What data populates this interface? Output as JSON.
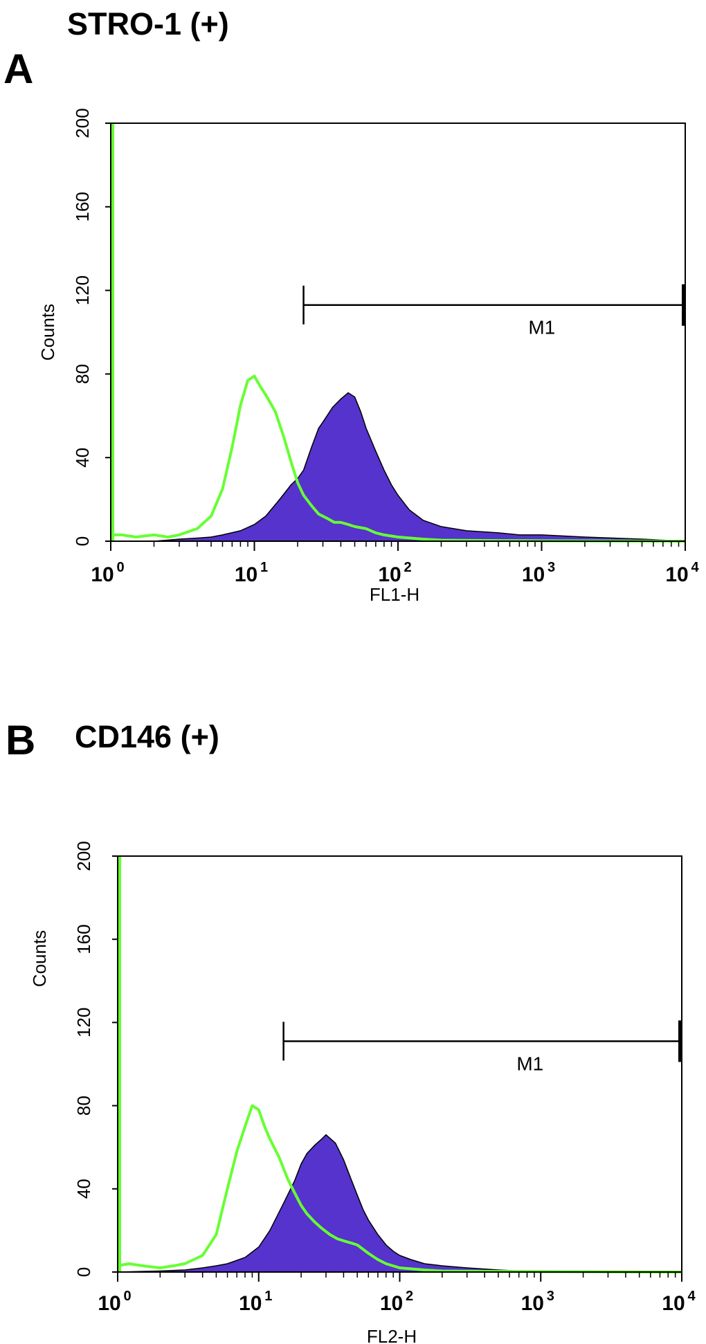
{
  "chart_data": [
    {
      "type": "area",
      "panel_label": "A",
      "title": "STRO-1 (+)",
      "xlabel": "FL1-H",
      "ylabel": "Counts",
      "xscale": "log",
      "xlim": [
        1,
        10000
      ],
      "ylim": [
        0,
        200
      ],
      "xticks": [
        {
          "base": "10",
          "exp": "0",
          "value": 1
        },
        {
          "base": "10",
          "exp": "1",
          "value": 10
        },
        {
          "base": "10",
          "exp": "2",
          "value": 100
        },
        {
          "base": "10",
          "exp": "3",
          "value": 1000
        },
        {
          "base": "10",
          "exp": "4",
          "value": 10000
        }
      ],
      "yticks": [
        "0",
        "40",
        "80",
        "120",
        "160",
        "200"
      ],
      "marker": {
        "label": "M1",
        "x_start": 22,
        "x_end": 10000,
        "y": 113
      },
      "series": [
        {
          "role": "control",
          "color": "#66ff33",
          "x": [
            1,
            1.2,
            1.5,
            2,
            2.5,
            3,
            4,
            5,
            6,
            7,
            8,
            9,
            10,
            11,
            12,
            14,
            16,
            18,
            20,
            22,
            25,
            28,
            32,
            36,
            40,
            45,
            50,
            60,
            70,
            80,
            100,
            150,
            200,
            500,
            1000,
            10000
          ],
          "y": [
            3,
            3,
            2,
            3,
            2,
            3,
            6,
            12,
            25,
            45,
            65,
            77,
            79,
            74,
            70,
            62,
            50,
            38,
            28,
            22,
            17,
            13,
            11,
            9,
            9,
            8,
            7,
            6,
            4,
            3,
            2,
            1,
            0.5,
            0.3,
            0.2,
            0
          ],
          "spike_at_x1": 200
        },
        {
          "role": "stained",
          "color": "#5533cc",
          "x": [
            1,
            2,
            3,
            4,
            5,
            6,
            8,
            10,
            12,
            15,
            18,
            20,
            22,
            25,
            28,
            30,
            35,
            40,
            45,
            50,
            55,
            60,
            70,
            80,
            90,
            100,
            120,
            150,
            200,
            300,
            500,
            700,
            1000,
            2000,
            5000,
            10000
          ],
          "y": [
            0,
            0,
            1,
            1.5,
            2,
            3,
            5,
            8,
            12,
            20,
            27,
            30,
            34,
            45,
            54,
            57,
            64,
            68,
            71,
            69,
            62,
            54,
            43,
            34,
            27,
            22,
            15,
            10,
            7,
            5,
            4,
            3,
            3,
            2,
            1,
            0
          ]
        }
      ]
    },
    {
      "type": "area",
      "panel_label": "B",
      "title": "CD146 (+)",
      "xlabel": "FL2-H",
      "ylabel": "Counts",
      "xscale": "log",
      "xlim": [
        1,
        10000
      ],
      "ylim": [
        0,
        200
      ],
      "xticks": [
        {
          "base": "10",
          "exp": "0",
          "value": 1
        },
        {
          "base": "10",
          "exp": "1",
          "value": 10
        },
        {
          "base": "10",
          "exp": "2",
          "value": 100
        },
        {
          "base": "10",
          "exp": "3",
          "value": 1000
        },
        {
          "base": "10",
          "exp": "4",
          "value": 10000
        }
      ],
      "yticks": [
        "0",
        "40",
        "80",
        "120",
        "160",
        "200"
      ],
      "marker": {
        "label": "M1",
        "x_start": 15,
        "x_end": 10000,
        "y": 111
      },
      "series": [
        {
          "role": "control",
          "color": "#66ff33",
          "x": [
            1,
            1.2,
            1.5,
            2,
            2.5,
            3,
            4,
            5,
            6,
            7,
            8,
            9,
            10,
            11,
            12,
            14,
            16,
            18,
            20,
            22,
            25,
            28,
            32,
            36,
            40,
            45,
            50,
            60,
            70,
            80,
            100,
            150,
            200,
            500,
            1000,
            10000
          ],
          "y": [
            3,
            4,
            3,
            2,
            3,
            4,
            8,
            18,
            40,
            58,
            70,
            80,
            78,
            70,
            64,
            55,
            45,
            38,
            32,
            28,
            24,
            21,
            18,
            16,
            15,
            14,
            13,
            9,
            6,
            4,
            2,
            1,
            0.5,
            0.3,
            0.2,
            0
          ],
          "spike_at_x1": 200
        },
        {
          "role": "stained",
          "color": "#5533cc",
          "x": [
            1,
            2,
            3,
            4,
            5,
            6,
            8,
            10,
            12,
            15,
            18,
            20,
            22,
            25,
            28,
            30,
            35,
            40,
            45,
            50,
            55,
            60,
            70,
            80,
            90,
            100,
            120,
            150,
            200,
            300,
            500,
            700,
            1000,
            2000,
            5000,
            10000
          ],
          "y": [
            0,
            0.5,
            1,
            2,
            3,
            4,
            7,
            12,
            20,
            33,
            44,
            52,
            57,
            61,
            64,
            66,
            62,
            54,
            45,
            37,
            30,
            25,
            18,
            13,
            10,
            8,
            6,
            4,
            3,
            2,
            1,
            0.5,
            0.5,
            0.2,
            0.1,
            0
          ]
        }
      ]
    }
  ]
}
